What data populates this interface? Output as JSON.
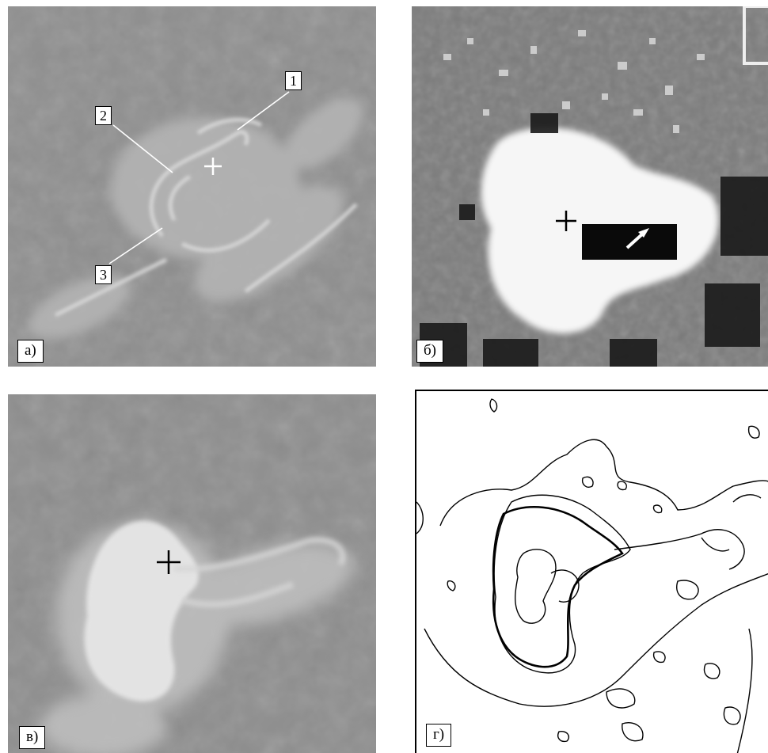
{
  "panels": {
    "a": {
      "label": "а)",
      "markers": [
        "1",
        "2",
        "3"
      ]
    },
    "b": {
      "label": "б)"
    },
    "c": {
      "label": "в)"
    },
    "d": {
      "label": "г)"
    }
  }
}
